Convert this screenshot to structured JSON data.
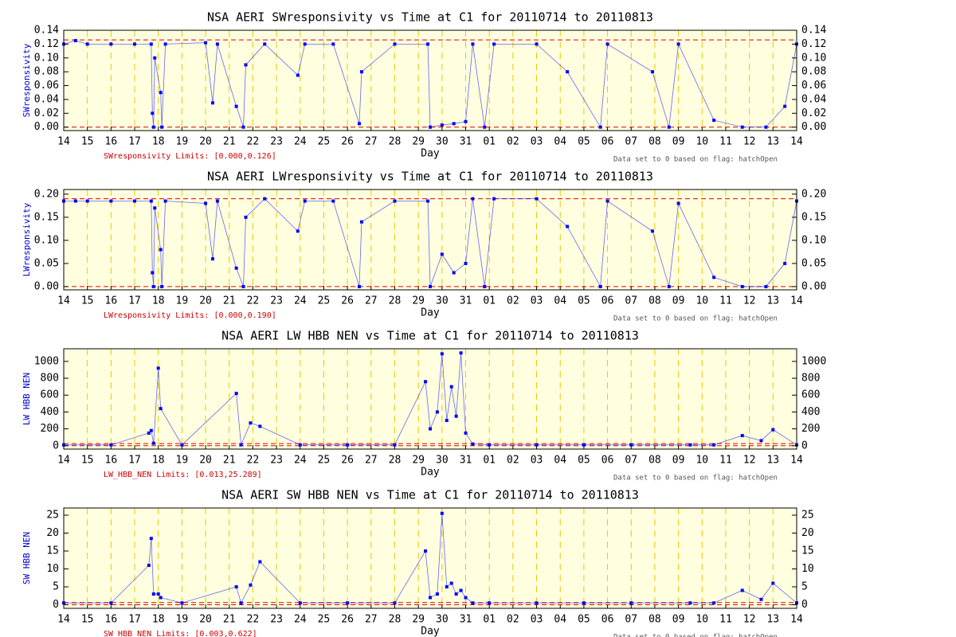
{
  "chart_data": [
    {
      "type": "scatter",
      "title": "NSA AERI SWresponsivity vs Time at C1 for 20110714 to 20110813",
      "x_label": "Day",
      "y_label": "SWresponsivity",
      "annotation": "SWresponsivity Limits: [0.000,0.126]",
      "note": "Data set to 0 based on flag: hatchOpen",
      "limits": [
        0.0,
        0.126
      ],
      "limit_color": "#dd0000",
      "color": "#0000ff",
      "background": "#ffffe0",
      "grid": true,
      "xlim": [
        0,
        31
      ],
      "ylim": [
        -0.005,
        0.14
      ],
      "xticks": [
        {
          "value": 0,
          "label": "14"
        },
        {
          "value": 1,
          "label": "15"
        },
        {
          "value": 2,
          "label": "16"
        },
        {
          "value": 3,
          "label": "17"
        },
        {
          "value": 4,
          "label": "18"
        },
        {
          "value": 5,
          "label": "19"
        },
        {
          "value": 6,
          "label": "20"
        },
        {
          "value": 7,
          "label": "21"
        },
        {
          "value": 8,
          "label": "22"
        },
        {
          "value": 9,
          "label": "23"
        },
        {
          "value": 10,
          "label": "24"
        },
        {
          "value": 11,
          "label": "25"
        },
        {
          "value": 12,
          "label": "26"
        },
        {
          "value": 13,
          "label": "27"
        },
        {
          "value": 14,
          "label": "28"
        },
        {
          "value": 15,
          "label": "29"
        },
        {
          "value": 16,
          "label": "30"
        },
        {
          "value": 17,
          "label": "31"
        },
        {
          "value": 18,
          "label": "01"
        },
        {
          "value": 19,
          "label": "02"
        },
        {
          "value": 20,
          "label": "03"
        },
        {
          "value": 21,
          "label": "04"
        },
        {
          "value": 22,
          "label": "05"
        },
        {
          "value": 23,
          "label": "06"
        },
        {
          "value": 24,
          "label": "07"
        },
        {
          "value": 25,
          "label": "08"
        },
        {
          "value": 26,
          "label": "09"
        },
        {
          "value": 27,
          "label": "10"
        },
        {
          "value": 28,
          "label": "11"
        },
        {
          "value": 29,
          "label": "12"
        },
        {
          "value": 30,
          "label": "13"
        },
        {
          "value": 31,
          "label": "14"
        }
      ],
      "yticks": [
        {
          "value": 0,
          "label": "0.00"
        },
        0.02,
        0.04,
        0.06,
        0.08,
        {
          "value": 0.1,
          "label": "0.10"
        },
        0.12,
        0.14
      ],
      "x": [
        0,
        0.5,
        1,
        2,
        3,
        3.7,
        3.75,
        3.8,
        3.85,
        4.1,
        4.15,
        4.3,
        6,
        6.3,
        6.5,
        7.3,
        7.6,
        7.7,
        8.5,
        9.9,
        10.2,
        11.4,
        12.5,
        12.6,
        14,
        15.4,
        15.5,
        16,
        16.5,
        17,
        17.3,
        17.8,
        18.2,
        20,
        21.3,
        22.7,
        23,
        24.9,
        25.6,
        26,
        27.5,
        28.7,
        29.7,
        30.5,
        31
      ],
      "values": [
        0.12,
        0.125,
        0.12,
        0.12,
        0.12,
        0.12,
        0.02,
        0,
        0.1,
        0.05,
        0,
        0.12,
        0.122,
        0.035,
        0.12,
        0.03,
        0,
        0.09,
        0.12,
        0.075,
        0.12,
        0.12,
        0.005,
        0.08,
        0.12,
        0.12,
        0,
        0.003,
        0.005,
        0.008,
        0.12,
        0,
        0.12,
        0.12,
        0.08,
        0,
        0.12,
        0.08,
        0,
        0.12,
        0.01,
        0,
        0,
        0.03,
        0.12
      ]
    },
    {
      "type": "scatter",
      "title": "NSA AERI LWresponsivity vs Time at C1 for 20110714 to 20110813",
      "x_label": "Day",
      "y_label": "LWresponsivity",
      "annotation": "LWresponsivity Limits: [0.000,0.190]",
      "note": "Data set to 0 based on flag: hatchOpen",
      "limits": [
        0.0,
        0.19
      ],
      "limit_color": "#dd0000",
      "color": "#0000ff",
      "background": "#ffffe0",
      "grid": true,
      "xlim": [
        0,
        31
      ],
      "ylim": [
        -0.007,
        0.21
      ],
      "xticks": [
        {
          "value": 0,
          "label": "14"
        },
        {
          "value": 1,
          "label": "15"
        },
        {
          "value": 2,
          "label": "16"
        },
        {
          "value": 3,
          "label": "17"
        },
        {
          "value": 4,
          "label": "18"
        },
        {
          "value": 5,
          "label": "19"
        },
        {
          "value": 6,
          "label": "20"
        },
        {
          "value": 7,
          "label": "21"
        },
        {
          "value": 8,
          "label": "22"
        },
        {
          "value": 9,
          "label": "23"
        },
        {
          "value": 10,
          "label": "24"
        },
        {
          "value": 11,
          "label": "25"
        },
        {
          "value": 12,
          "label": "26"
        },
        {
          "value": 13,
          "label": "27"
        },
        {
          "value": 14,
          "label": "28"
        },
        {
          "value": 15,
          "label": "29"
        },
        {
          "value": 16,
          "label": "30"
        },
        {
          "value": 17,
          "label": "31"
        },
        {
          "value": 18,
          "label": "01"
        },
        {
          "value": 19,
          "label": "02"
        },
        {
          "value": 20,
          "label": "03"
        },
        {
          "value": 21,
          "label": "04"
        },
        {
          "value": 22,
          "label": "05"
        },
        {
          "value": 23,
          "label": "06"
        },
        {
          "value": 24,
          "label": "07"
        },
        {
          "value": 25,
          "label": "08"
        },
        {
          "value": 26,
          "label": "09"
        },
        {
          "value": 27,
          "label": "10"
        },
        {
          "value": 28,
          "label": "11"
        },
        {
          "value": 29,
          "label": "12"
        },
        {
          "value": 30,
          "label": "13"
        },
        {
          "value": 31,
          "label": "14"
        }
      ],
      "yticks": [
        {
          "value": 0,
          "label": "0.00"
        },
        0.05,
        {
          "value": 0.1,
          "label": "0.10"
        },
        0.15,
        {
          "value": 0.2,
          "label": "0.20"
        }
      ],
      "x": [
        0,
        0.5,
        1,
        2,
        3,
        3.7,
        3.75,
        3.8,
        3.85,
        4.1,
        4.15,
        4.3,
        6,
        6.3,
        6.5,
        7.3,
        7.6,
        7.7,
        8.5,
        9.9,
        10.2,
        11.4,
        12.5,
        12.6,
        14,
        15.4,
        15.5,
        16,
        16.5,
        17,
        17.3,
        17.8,
        18.2,
        20,
        21.3,
        22.7,
        23,
        24.9,
        25.6,
        26,
        27.5,
        28.7,
        29.7,
        30.5,
        31
      ],
      "values": [
        0.185,
        0.185,
        0.185,
        0.185,
        0.185,
        0.185,
        0.03,
        0,
        0.17,
        0.08,
        0,
        0.185,
        0.18,
        0.06,
        0.185,
        0.04,
        0,
        0.15,
        0.19,
        0.12,
        0.185,
        0.185,
        0,
        0.14,
        0.185,
        0.185,
        0,
        0.07,
        0.03,
        0.05,
        0.19,
        0,
        0.19,
        0.19,
        0.13,
        0,
        0.185,
        0.12,
        0,
        0.18,
        0.02,
        0,
        0,
        0.05,
        0.185
      ]
    },
    {
      "type": "scatter",
      "title": "NSA AERI LW HBB NEN vs Time at C1 for 20110714 to 20110813",
      "x_label": "Day",
      "y_label": "LW HBB NEN",
      "annotation": "LW_HBB_NEN Limits: [0.013,25.289]",
      "note": "Data set to 0 based on flag: hatchOpen",
      "limits": [
        0.013,
        25.289
      ],
      "limit_color": "#dd0000",
      "color": "#0000ff",
      "background": "#ffffe0",
      "grid": true,
      "xlim": [
        0,
        31
      ],
      "ylim": [
        -40,
        1150
      ],
      "xticks": [
        {
          "value": 0,
          "label": "14"
        },
        {
          "value": 1,
          "label": "15"
        },
        {
          "value": 2,
          "label": "16"
        },
        {
          "value": 3,
          "label": "17"
        },
        {
          "value": 4,
          "label": "18"
        },
        {
          "value": 5,
          "label": "19"
        },
        {
          "value": 6,
          "label": "20"
        },
        {
          "value": 7,
          "label": "21"
        },
        {
          "value": 8,
          "label": "22"
        },
        {
          "value": 9,
          "label": "23"
        },
        {
          "value": 10,
          "label": "24"
        },
        {
          "value": 11,
          "label": "25"
        },
        {
          "value": 12,
          "label": "26"
        },
        {
          "value": 13,
          "label": "27"
        },
        {
          "value": 14,
          "label": "28"
        },
        {
          "value": 15,
          "label": "29"
        },
        {
          "value": 16,
          "label": "30"
        },
        {
          "value": 17,
          "label": "31"
        },
        {
          "value": 18,
          "label": "01"
        },
        {
          "value": 19,
          "label": "02"
        },
        {
          "value": 20,
          "label": "03"
        },
        {
          "value": 21,
          "label": "04"
        },
        {
          "value": 22,
          "label": "05"
        },
        {
          "value": 23,
          "label": "06"
        },
        {
          "value": 24,
          "label": "07"
        },
        {
          "value": 25,
          "label": "08"
        },
        {
          "value": 26,
          "label": "09"
        },
        {
          "value": 27,
          "label": "10"
        },
        {
          "value": 28,
          "label": "11"
        },
        {
          "value": 29,
          "label": "12"
        },
        {
          "value": 30,
          "label": "13"
        },
        {
          "value": 31,
          "label": "14"
        }
      ],
      "yticks": [
        0,
        200,
        400,
        600,
        800,
        1000
      ],
      "x": [
        0,
        2,
        3.6,
        3.7,
        3.8,
        4.0,
        4.1,
        5,
        7.3,
        7.5,
        7.9,
        8.3,
        10,
        12,
        14,
        15.3,
        15.5,
        15.8,
        16.0,
        16.2,
        16.4,
        16.6,
        16.8,
        17.0,
        17.3,
        18,
        20,
        22,
        24,
        26.5,
        27.5,
        28.7,
        29.5,
        30,
        31
      ],
      "values": [
        10,
        10,
        150,
        180,
        30,
        920,
        440,
        10,
        620,
        10,
        270,
        230,
        10,
        10,
        10,
        760,
        200,
        400,
        1090,
        300,
        700,
        350,
        1100,
        150,
        20,
        10,
        10,
        10,
        10,
        10,
        10,
        120,
        60,
        190,
        10
      ]
    },
    {
      "type": "scatter",
      "title": "NSA AERI SW HBB NEN vs Time at C1 for 20110714 to 20110813",
      "x_label": "Day",
      "y_label": "SW HBB NEN",
      "annotation": "SW_HBB_NEN Limits: [0.003,0.622]",
      "note": "Data set to 0 based on flag: hatchOpen",
      "limits": [
        0.003,
        0.622
      ],
      "limit_color": "#dd0000",
      "color": "#0000ff",
      "background": "#ffffe0",
      "grid": true,
      "xlim": [
        0,
        31
      ],
      "ylim": [
        -1,
        27
      ],
      "xticks": [
        {
          "value": 0,
          "label": "14"
        },
        {
          "value": 1,
          "label": "15"
        },
        {
          "value": 2,
          "label": "16"
        },
        {
          "value": 3,
          "label": "17"
        },
        {
          "value": 4,
          "label": "18"
        },
        {
          "value": 5,
          "label": "19"
        },
        {
          "value": 6,
          "label": "20"
        },
        {
          "value": 7,
          "label": "21"
        },
        {
          "value": 8,
          "label": "22"
        },
        {
          "value": 9,
          "label": "23"
        },
        {
          "value": 10,
          "label": "24"
        },
        {
          "value": 11,
          "label": "25"
        },
        {
          "value": 12,
          "label": "26"
        },
        {
          "value": 13,
          "label": "27"
        },
        {
          "value": 14,
          "label": "28"
        },
        {
          "value": 15,
          "label": "29"
        },
        {
          "value": 16,
          "label": "30"
        },
        {
          "value": 17,
          "label": "31"
        },
        {
          "value": 18,
          "label": "01"
        },
        {
          "value": 19,
          "label": "02"
        },
        {
          "value": 20,
          "label": "03"
        },
        {
          "value": 21,
          "label": "04"
        },
        {
          "value": 22,
          "label": "05"
        },
        {
          "value": 23,
          "label": "06"
        },
        {
          "value": 24,
          "label": "07"
        },
        {
          "value": 25,
          "label": "08"
        },
        {
          "value": 26,
          "label": "09"
        },
        {
          "value": 27,
          "label": "10"
        },
        {
          "value": 28,
          "label": "11"
        },
        {
          "value": 29,
          "label": "12"
        },
        {
          "value": 30,
          "label": "13"
        },
        {
          "value": 31,
          "label": "14"
        }
      ],
      "yticks": [
        0,
        5,
        10,
        15,
        20,
        25
      ],
      "x": [
        0,
        2,
        3.6,
        3.7,
        3.8,
        4.0,
        4.1,
        5,
        7.3,
        7.5,
        7.9,
        8.3,
        10,
        12,
        14,
        15.3,
        15.5,
        15.8,
        16.0,
        16.2,
        16.4,
        16.6,
        16.8,
        17.0,
        17.3,
        18,
        20,
        22,
        24,
        26.5,
        27.5,
        28.7,
        29.5,
        30,
        31
      ],
      "values": [
        0.5,
        0.5,
        11,
        18.5,
        3,
        3,
        2,
        0.5,
        5,
        0.5,
        5.5,
        12,
        0.5,
        0.5,
        0.5,
        15,
        2,
        3,
        25.5,
        5,
        6,
        3,
        4,
        2,
        0.5,
        0.5,
        0.5,
        0.5,
        0.5,
        0.5,
        0.5,
        4,
        1.5,
        6,
        0.5
      ]
    }
  ]
}
